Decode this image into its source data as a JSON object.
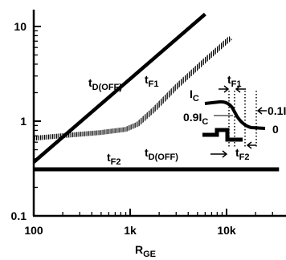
{
  "chart_data": {
    "type": "line",
    "x_scale": "log",
    "y_scale": "log",
    "xlim": [
      100,
      35000
    ],
    "ylim": [
      0.1,
      15
    ],
    "xlabel": {
      "main": "R",
      "sub": "GE"
    },
    "ylabel": "",
    "grid": false,
    "x_ticks": [
      {
        "value": 100,
        "label": "100"
      },
      {
        "value": 1000,
        "label": "1k"
      },
      {
        "value": 10000,
        "label": "10k"
      }
    ],
    "y_ticks": [
      {
        "value": 10,
        "label": "10"
      },
      {
        "value": 1,
        "label": "1"
      },
      {
        "value": 0.1,
        "label": "0.1"
      }
    ],
    "series": [
      {
        "name": "t_D(OFF)",
        "label": {
          "main": "t",
          "sub": "D(OFF)"
        },
        "style": "solid-thick",
        "points": [
          [
            100,
            0.37
          ],
          [
            6000,
            13.5
          ]
        ]
      },
      {
        "name": "t_F1",
        "label": {
          "main": "t",
          "sub": "F1"
        },
        "style": "hatched",
        "points": [
          [
            100,
            0.66
          ],
          [
            220,
            0.71
          ],
          [
            500,
            0.76
          ],
          [
            900,
            0.82
          ],
          [
            1200,
            0.93
          ],
          [
            1800,
            1.35
          ],
          [
            3000,
            2.3
          ],
          [
            6000,
            4.4
          ],
          [
            11000,
            7.6
          ]
        ]
      },
      {
        "name": "t_F2",
        "label": {
          "main": "t",
          "sub": "F2"
        },
        "style": "solid-thick",
        "points": [
          [
            100,
            0.31
          ],
          [
            35000,
            0.31
          ]
        ]
      }
    ],
    "inset": {
      "labels": {
        "tf1": {
          "main": "t",
          "sub": "F1"
        },
        "ic": {
          "main": "I",
          "sub": "C"
        },
        "pct90": {
          "main": "0.9I",
          "sub": "C"
        },
        "pct10": {
          "main": "0.1I",
          "sub": "C"
        },
        "zero": "0",
        "tdoff": {
          "main": "t",
          "sub": "D(OFF)"
        },
        "tf2": {
          "main": "t",
          "sub": "F2"
        }
      }
    }
  }
}
